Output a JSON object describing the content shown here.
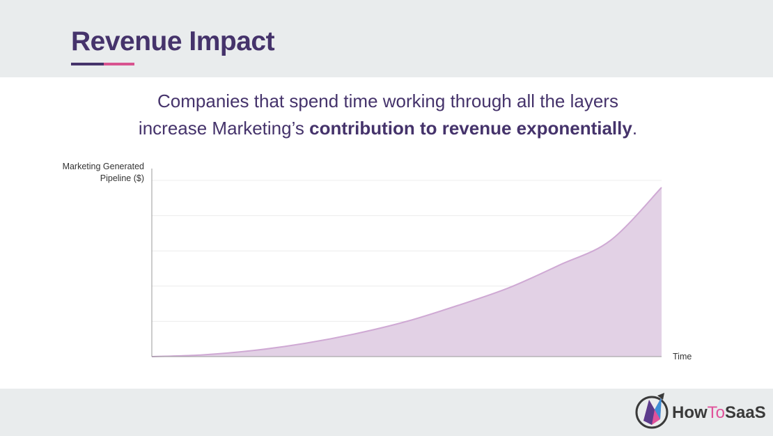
{
  "slide": {
    "title": "Revenue Impact",
    "subtitle_line1": "Companies that spend time working through all the layers",
    "subtitle_line2_plain": "increase Marketing’s ",
    "subtitle_line2_bold": "contribution to revenue exponentially",
    "subtitle_line2_end": "."
  },
  "colors": {
    "title": "#45336b",
    "accent_pink": "#d8538f",
    "area_fill": "#e2d1e5",
    "area_line": "#cfa9d4",
    "band_gray": "#e9eced"
  },
  "chart_data": {
    "type": "area",
    "title": "",
    "ylabel_line1": "Marketing Generated",
    "ylabel_line2": "Pipeline ($)",
    "xlabel": "Time",
    "grid": true,
    "xlim": [
      0,
      1
    ],
    "ylim": [
      0,
      1
    ],
    "x": [
      0,
      0.1,
      0.2,
      0.3,
      0.4,
      0.5,
      0.6,
      0.7,
      0.8,
      0.9,
      1.0
    ],
    "series": [
      {
        "values": [
          0,
          0.01,
          0.035,
          0.075,
          0.13,
          0.2,
          0.29,
          0.39,
          0.52,
          0.66,
          0.96
        ]
      }
    ]
  },
  "logo": {
    "word1": "How",
    "word2": "To",
    "word3": "SaaS"
  }
}
